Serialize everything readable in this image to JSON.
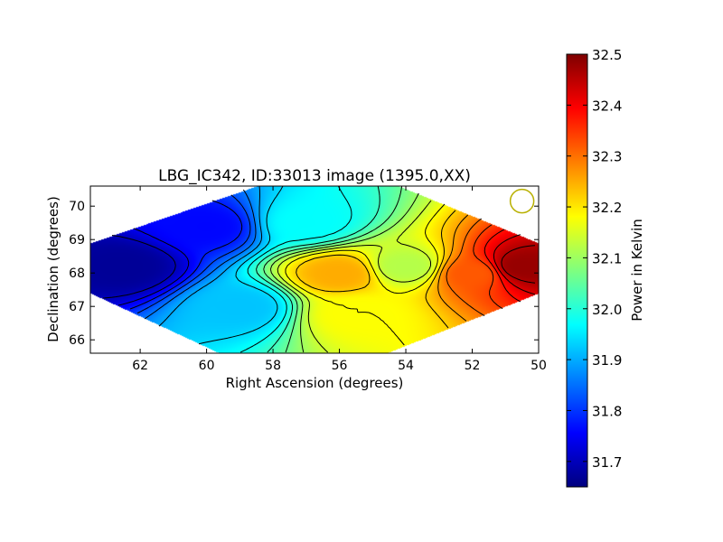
{
  "chart_data": {
    "type": "heatmap",
    "title": "LBG_IC342, ID:33013 image (1395.0,XX)",
    "xlabel": "Right Ascension (degrees)",
    "ylabel": "Declination (degrees)",
    "xlim": [
      63.5,
      50.0
    ],
    "ylim": [
      65.6,
      70.6
    ],
    "x_ticks": [
      "62",
      "60",
      "58",
      "56",
      "54",
      "52",
      "50"
    ],
    "y_ticks": [
      "66",
      "67",
      "68",
      "69",
      "70"
    ],
    "colorbar": {
      "label": "Power in Kelvin",
      "min": 31.65,
      "max": 32.5,
      "ticks": [
        "31.7",
        "31.8",
        "31.9",
        "32.0",
        "32.1",
        "32.2",
        "32.3",
        "32.4",
        "32.5"
      ],
      "colormap": "jet"
    },
    "image_region_vertices": [
      [
        63.5,
        68.9
      ],
      [
        58.5,
        70.6
      ],
      [
        54.2,
        70.6
      ],
      [
        50.0,
        68.9
      ],
      [
        50.0,
        67.4
      ],
      [
        54.6,
        65.6
      ],
      [
        59.6,
        65.6
      ],
      [
        63.5,
        67.4
      ]
    ],
    "colormap_stops": [
      "#00007f",
      "#0000ff",
      "#007fff",
      "#00ffff",
      "#7fff7f",
      "#ffff00",
      "#ff7f00",
      "#ff0000",
      "#7f0000"
    ],
    "value_field_samples": [
      {
        "ra": 62.5,
        "dec": 68.2,
        "value": 31.67
      },
      {
        "ra": 60.0,
        "dec": 69.4,
        "value": 31.76
      },
      {
        "ra": 59.0,
        "dec": 67.0,
        "value": 31.92
      },
      {
        "ra": 57.0,
        "dec": 69.5,
        "value": 31.97
      },
      {
        "ra": 56.0,
        "dec": 68.0,
        "value": 32.25
      },
      {
        "ra": 55.5,
        "dec": 66.8,
        "value": 32.18
      },
      {
        "ra": 54.0,
        "dec": 68.2,
        "value": 32.12
      },
      {
        "ra": 52.0,
        "dec": 68.0,
        "value": 32.32
      },
      {
        "ra": 50.5,
        "dec": 68.2,
        "value": 32.48
      }
    ],
    "beam_marker": {
      "ra": 50.5,
      "dec": 70.15,
      "color": "#b8b000"
    },
    "grid": false
  }
}
